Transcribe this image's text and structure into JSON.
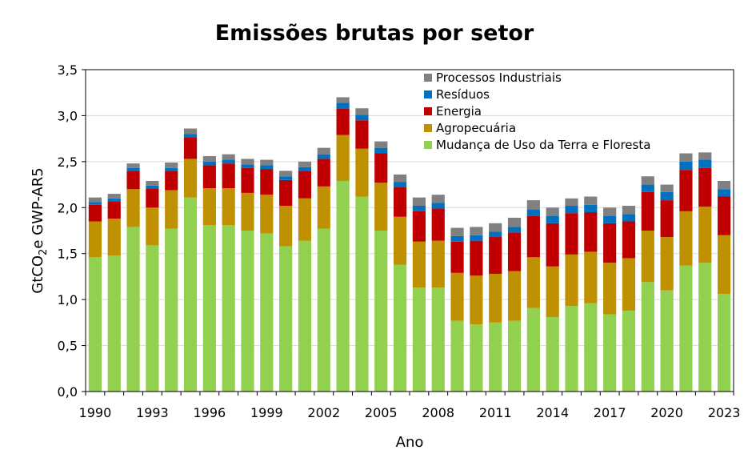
{
  "chart_data": {
    "type": "bar",
    "stacked": true,
    "title": "Emissões brutas por setor",
    "xlabel": "Ano",
    "ylabel_main": "GtCO",
    "ylabel_sub": "2",
    "ylabel_rest": "e GWP-AR5",
    "ylim": [
      0,
      3.5
    ],
    "yticks": [
      "0,0",
      "0,5",
      "1,0",
      "1,5",
      "2,0",
      "2,5",
      "3,0",
      "3,5"
    ],
    "ytick_values": [
      0,
      0.5,
      1.0,
      1.5,
      2.0,
      2.5,
      3.0,
      3.5
    ],
    "x_tick_labels": [
      "1990",
      "1993",
      "1996",
      "1999",
      "2002",
      "2005",
      "2008",
      "2011",
      "2014",
      "2017",
      "2020",
      "2023"
    ],
    "grid": true,
    "legend_position": "top-right",
    "categories": [
      1990,
      1991,
      1992,
      1993,
      1994,
      1995,
      1996,
      1997,
      1998,
      1999,
      2000,
      2001,
      2002,
      2003,
      2004,
      2005,
      2006,
      2007,
      2008,
      2009,
      2010,
      2011,
      2012,
      2013,
      2014,
      2015,
      2016,
      2017,
      2018,
      2019,
      2020,
      2021,
      2022,
      2023
    ],
    "series": [
      {
        "name": "Mudança de Uso da Terra e Floresta",
        "color": "#92d050",
        "values": [
          1.46,
          1.48,
          1.79,
          1.59,
          1.77,
          2.11,
          1.81,
          1.81,
          1.75,
          1.72,
          1.58,
          1.64,
          1.77,
          2.29,
          2.12,
          1.75,
          1.38,
          1.13,
          1.13,
          0.77,
          0.73,
          0.75,
          0.77,
          0.91,
          0.81,
          0.93,
          0.96,
          0.84,
          0.88,
          1.19,
          1.1,
          1.37,
          1.4,
          1.06
        ]
      },
      {
        "name": "Agropecuária",
        "color": "#bf9000",
        "values": [
          0.39,
          0.4,
          0.41,
          0.41,
          0.42,
          0.42,
          0.4,
          0.4,
          0.41,
          0.42,
          0.44,
          0.46,
          0.46,
          0.5,
          0.52,
          0.52,
          0.52,
          0.5,
          0.51,
          0.52,
          0.53,
          0.53,
          0.54,
          0.55,
          0.55,
          0.56,
          0.56,
          0.56,
          0.57,
          0.56,
          0.58,
          0.59,
          0.61,
          0.64
        ]
      },
      {
        "name": "Energia",
        "color": "#c00000",
        "values": [
          0.18,
          0.19,
          0.2,
          0.21,
          0.21,
          0.23,
          0.25,
          0.27,
          0.27,
          0.28,
          0.28,
          0.3,
          0.3,
          0.29,
          0.31,
          0.32,
          0.32,
          0.33,
          0.35,
          0.34,
          0.38,
          0.4,
          0.42,
          0.45,
          0.47,
          0.45,
          0.43,
          0.43,
          0.4,
          0.42,
          0.4,
          0.45,
          0.42,
          0.42
        ]
      },
      {
        "name": "Resíduos",
        "color": "#0070c0",
        "values": [
          0.03,
          0.03,
          0.03,
          0.03,
          0.03,
          0.04,
          0.04,
          0.04,
          0.04,
          0.04,
          0.04,
          0.04,
          0.05,
          0.06,
          0.06,
          0.06,
          0.06,
          0.06,
          0.06,
          0.06,
          0.06,
          0.06,
          0.06,
          0.07,
          0.08,
          0.08,
          0.08,
          0.08,
          0.08,
          0.08,
          0.09,
          0.09,
          0.09,
          0.08
        ]
      },
      {
        "name": "Processos Industriais",
        "color": "#808080",
        "values": [
          0.05,
          0.05,
          0.05,
          0.05,
          0.06,
          0.06,
          0.06,
          0.06,
          0.06,
          0.06,
          0.06,
          0.06,
          0.07,
          0.06,
          0.07,
          0.07,
          0.08,
          0.09,
          0.09,
          0.09,
          0.09,
          0.09,
          0.1,
          0.1,
          0.09,
          0.08,
          0.09,
          0.09,
          0.09,
          0.09,
          0.08,
          0.09,
          0.08,
          0.09
        ]
      }
    ]
  }
}
